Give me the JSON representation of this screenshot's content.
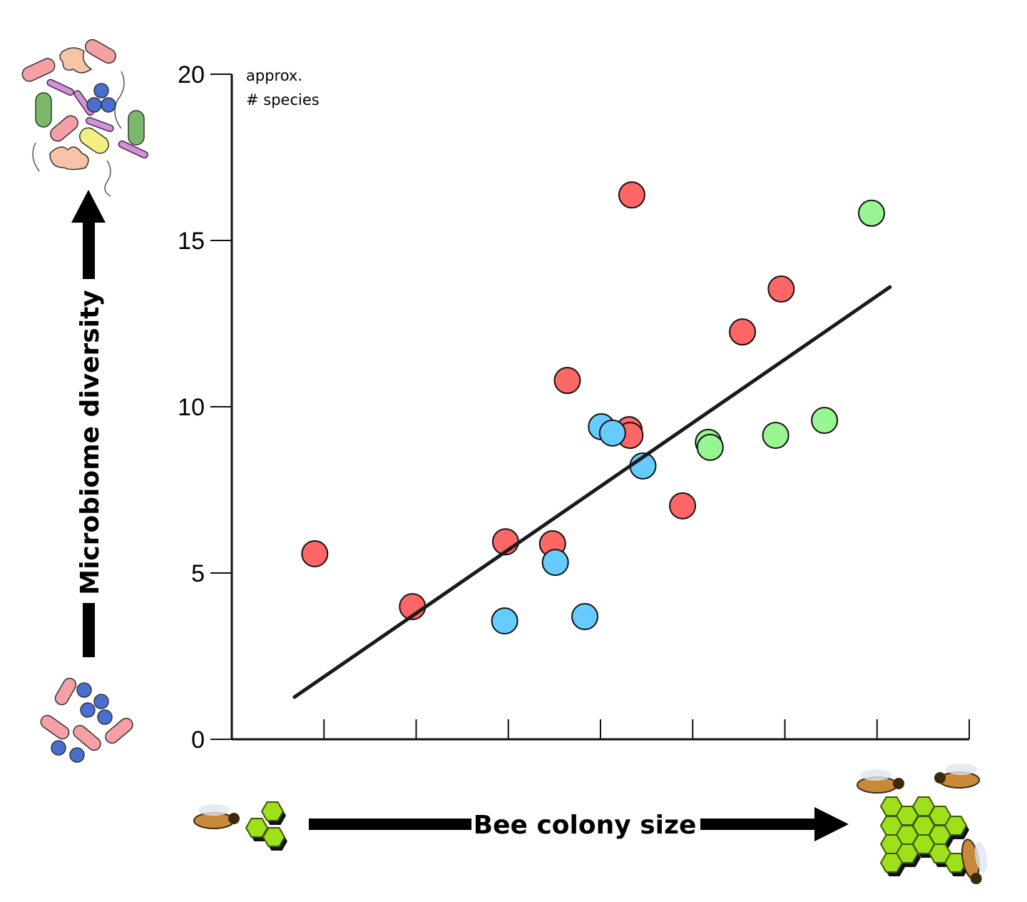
{
  "chart_data": {
    "type": "scatter",
    "title": "",
    "xlabel": "Bee colony size",
    "ylabel": "Microbiome diversity",
    "y_unit_label": [
      "approx.",
      "# species"
    ],
    "ylim": [
      0,
      20
    ],
    "yticks": [
      0,
      5,
      10,
      15,
      20
    ],
    "xlim": [
      0,
      8
    ],
    "xticks": [
      1,
      2,
      3,
      4,
      5,
      6,
      7,
      8
    ],
    "xtick_labels_shown": false,
    "grid": false,
    "legend": "none",
    "series": [
      {
        "color": "#ff6666",
        "points": [
          [
            0.9,
            5.58
          ],
          [
            1.96,
            3.99
          ],
          [
            2.97,
            5.94
          ],
          [
            3.48,
            5.88
          ],
          [
            3.64,
            10.79
          ],
          [
            4.34,
            16.37
          ],
          [
            4.31,
            9.31
          ],
          [
            4.32,
            9.14
          ],
          [
            4.89,
            7.02
          ],
          [
            5.54,
            12.25
          ],
          [
            5.96,
            13.54
          ]
        ]
      },
      {
        "color": "#66ccff",
        "points": [
          [
            4.01,
            9.4
          ],
          [
            4.13,
            9.21
          ],
          [
            4.46,
            8.22
          ],
          [
            3.51,
            5.32
          ],
          [
            2.96,
            3.56
          ],
          [
            3.83,
            3.69
          ]
        ]
      },
      {
        "color": "#99f590",
        "points": [
          [
            6.94,
            15.82
          ],
          [
            5.17,
            8.93
          ],
          [
            5.19,
            8.78
          ],
          [
            5.9,
            9.14
          ],
          [
            6.43,
            9.59
          ]
        ]
      }
    ],
    "trend_line": {
      "x": [
        0.68,
        7.14
      ],
      "y": [
        1.27,
        13.6
      ],
      "color": "#1a1a1a"
    },
    "illustrations": [
      "low-diversity-microbes-icon",
      "high-diversity-microbes-icon",
      "small-colony-bee-honeycomb-icon",
      "large-colony-bees-honeycomb-icon"
    ]
  }
}
